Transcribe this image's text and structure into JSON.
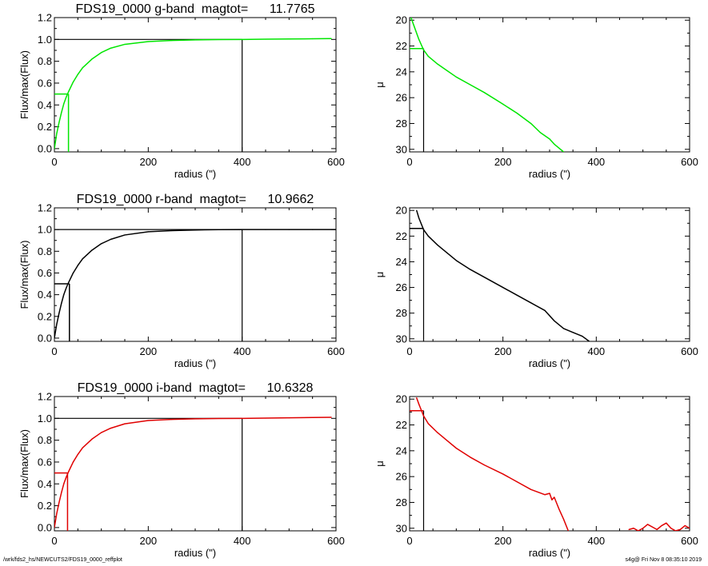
{
  "colors": {
    "g": "#00e600",
    "r": "#000000",
    "i": "#e00000",
    "axis": "#000000"
  },
  "footer": {
    "left": "/wrk/fds2_hs/NEWCUTS2/FDS19_0000_reffplot",
    "right": "s4g@  Fri Nov  8 08:35:10 2019"
  },
  "chart_data": [
    {
      "type": "line",
      "panel": "g-band growth curve",
      "title": "FDS19_0000 g-band  magtot=      11.7765",
      "xlabel": "radius (\")",
      "ylabel": "Flux/max(Flux)",
      "xlim": [
        0,
        600
      ],
      "ylim": [
        -0.03,
        1.2
      ],
      "xticks": [
        "0",
        "200",
        "400",
        "600"
      ],
      "yticks": [
        "0.0",
        "0.2",
        "0.4",
        "0.6",
        "0.8",
        "1.0",
        "1.2"
      ],
      "series": [
        {
          "color": "#00e600",
          "x": [
            0,
            5,
            10,
            15,
            20,
            25,
            30,
            40,
            50,
            60,
            80,
            100,
            120,
            150,
            200,
            250,
            300,
            350,
            400,
            450,
            500,
            550,
            590
          ],
          "y": [
            0,
            0.14,
            0.24,
            0.33,
            0.41,
            0.47,
            0.52,
            0.61,
            0.68,
            0.74,
            0.82,
            0.88,
            0.92,
            0.955,
            0.98,
            0.99,
            0.996,
            0.999,
            1.0,
            1.002,
            1.004,
            1.006,
            1.008
          ]
        }
      ],
      "refs": {
        "r_eff": 30,
        "half": 0.5,
        "r_max": 400,
        "top": 1.0
      }
    },
    {
      "type": "line",
      "panel": "g-band surface brightness profile",
      "title": "",
      "xlabel": "radius (\")",
      "ylabel": "μ",
      "xlim": [
        0,
        600
      ],
      "ylim": [
        30.2,
        19.8
      ],
      "xticks": [
        "0",
        "200",
        "400",
        "600"
      ],
      "yticks": [
        "20",
        "22",
        "24",
        "26",
        "28",
        "30"
      ],
      "series": [
        {
          "color": "#00e600",
          "x": [
            3,
            10,
            20,
            30,
            40,
            60,
            80,
            100,
            130,
            160,
            200,
            230,
            260,
            280,
            300,
            310,
            320,
            330
          ],
          "y": [
            19.8,
            20.5,
            21.5,
            22.3,
            22.8,
            23.4,
            23.9,
            24.4,
            25.0,
            25.6,
            26.5,
            27.2,
            28.0,
            28.7,
            29.2,
            29.6,
            29.9,
            30.2
          ]
        }
      ],
      "refs": {
        "r_eff": 30,
        "mu_eff": 22.2
      }
    },
    {
      "type": "line",
      "panel": "r-band growth curve",
      "title": "FDS19_0000 r-band  magtot=      10.9662",
      "xlabel": "radius (\")",
      "ylabel": "Flux/max(Flux)",
      "xlim": [
        0,
        600
      ],
      "ylim": [
        -0.03,
        1.2
      ],
      "xticks": [
        "0",
        "200",
        "400",
        "600"
      ],
      "yticks": [
        "0.0",
        "0.2",
        "0.4",
        "0.6",
        "0.8",
        "1.0",
        "1.2"
      ],
      "series": [
        {
          "color": "#000000",
          "x": [
            0,
            5,
            10,
            15,
            20,
            25,
            30,
            40,
            50,
            60,
            80,
            100,
            120,
            150,
            200,
            250,
            300,
            350,
            400,
            450,
            500,
            550,
            600
          ],
          "y": [
            0,
            0.13,
            0.23,
            0.32,
            0.4,
            0.46,
            0.51,
            0.6,
            0.67,
            0.73,
            0.81,
            0.87,
            0.91,
            0.95,
            0.98,
            0.99,
            0.996,
            0.999,
            1.0,
            1.0,
            1.0,
            1.0,
            1.0
          ]
        }
      ],
      "refs": {
        "r_eff": 32,
        "half": 0.5,
        "r_max": 400,
        "top": 1.0
      }
    },
    {
      "type": "line",
      "panel": "r-band surface brightness profile",
      "title": "",
      "xlabel": "radius (\")",
      "ylabel": "μ",
      "xlim": [
        0,
        600
      ],
      "ylim": [
        30.2,
        19.8
      ],
      "xticks": [
        "0",
        "200",
        "400",
        "600"
      ],
      "yticks": [
        "20",
        "22",
        "24",
        "26",
        "28",
        "30"
      ],
      "series": [
        {
          "color": "#000000",
          "x": [
            15,
            20,
            30,
            40,
            60,
            80,
            100,
            130,
            160,
            200,
            230,
            260,
            290,
            310,
            330,
            350,
            370,
            385
          ],
          "y": [
            20.0,
            20.6,
            21.5,
            22.0,
            22.7,
            23.3,
            23.9,
            24.6,
            25.2,
            26.0,
            26.6,
            27.2,
            27.8,
            28.6,
            29.2,
            29.5,
            29.8,
            30.2
          ]
        }
      ],
      "refs": {
        "r_eff": 30,
        "mu_eff": 21.4
      }
    },
    {
      "type": "line",
      "panel": "i-band growth curve",
      "title": "FDS19_0000 i-band  magtot=      10.6328",
      "xlabel": "radius (\")",
      "ylabel": "Flux/max(Flux)",
      "xlim": [
        0,
        600
      ],
      "ylim": [
        -0.03,
        1.2
      ],
      "xticks": [
        "0",
        "200",
        "400",
        "600"
      ],
      "yticks": [
        "0.0",
        "0.2",
        "0.4",
        "0.6",
        "0.8",
        "1.0",
        "1.2"
      ],
      "series": [
        {
          "color": "#e00000",
          "x": [
            0,
            5,
            10,
            15,
            20,
            25,
            30,
            40,
            50,
            60,
            80,
            100,
            120,
            150,
            200,
            250,
            300,
            350,
            400,
            450,
            500,
            550,
            590
          ],
          "y": [
            0,
            0.13,
            0.23,
            0.32,
            0.4,
            0.46,
            0.51,
            0.6,
            0.67,
            0.73,
            0.81,
            0.87,
            0.91,
            0.95,
            0.98,
            0.99,
            0.996,
            0.999,
            1.0,
            1.002,
            1.005,
            1.008,
            1.01
          ]
        }
      ],
      "refs": {
        "r_eff": 28,
        "half": 0.5,
        "r_max": 400,
        "top": 1.0
      }
    },
    {
      "type": "line",
      "panel": "i-band surface brightness profile",
      "title": "",
      "xlabel": "radius (\")",
      "ylabel": "μ",
      "xlim": [
        0,
        600
      ],
      "ylim": [
        30.2,
        19.8
      ],
      "xticks": [
        "0",
        "200",
        "400",
        "600"
      ],
      "yticks": [
        "20",
        "22",
        "24",
        "26",
        "28",
        "30"
      ],
      "series": [
        {
          "color": "#e00000",
          "x": [
            15,
            20,
            30,
            40,
            60,
            80,
            100,
            130,
            160,
            200,
            230,
            260,
            290,
            300,
            305,
            310,
            320,
            330,
            340
          ],
          "y": [
            19.9,
            20.4,
            21.3,
            21.9,
            22.6,
            23.2,
            23.8,
            24.5,
            25.1,
            25.8,
            26.4,
            27.0,
            27.4,
            27.3,
            27.8,
            27.6,
            28.5,
            29.3,
            30.2
          ]
        },
        {
          "color": "#e00000",
          "x": [
            470,
            480,
            490,
            500,
            510,
            520,
            530,
            540,
            550,
            560,
            570,
            580,
            590,
            600
          ],
          "y": [
            30.1,
            30.0,
            30.2,
            30.0,
            29.7,
            29.9,
            30.1,
            29.8,
            29.6,
            30.0,
            30.2,
            30.1,
            29.8,
            30.0
          ]
        }
      ],
      "refs": {
        "r_eff": 30,
        "mu_eff": 20.9
      }
    }
  ]
}
